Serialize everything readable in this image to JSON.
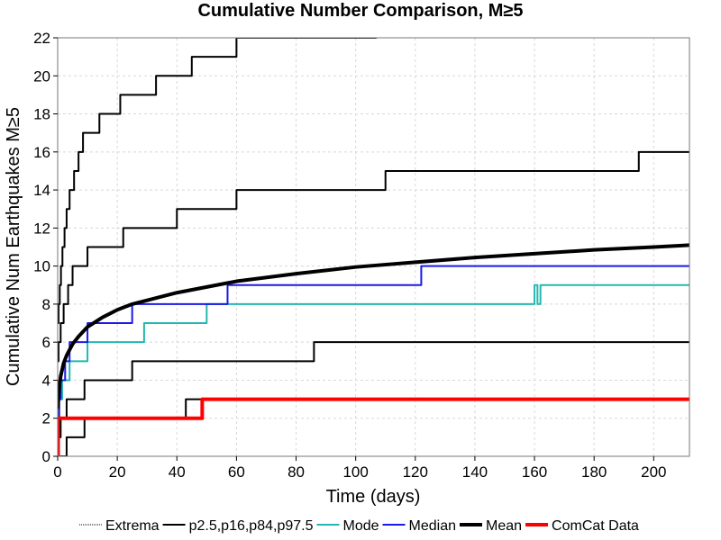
{
  "chart_data": {
    "type": "line",
    "title": "Cumulative Number Comparison, M≥5",
    "xlabel": "Time (days)",
    "ylabel": "Cumulative Num Earthquakes M≥5",
    "xlim": [
      0,
      212
    ],
    "ylim": [
      0,
      22
    ],
    "xticks": [
      0,
      20,
      40,
      60,
      80,
      100,
      120,
      140,
      160,
      180,
      200
    ],
    "yticks": [
      0,
      2,
      4,
      6,
      8,
      10,
      12,
      14,
      16,
      18,
      20,
      22
    ],
    "grid": true,
    "legend_position": "bottom",
    "legend": [
      {
        "label": "Extrema",
        "color": "#000000",
        "style": "dotted"
      },
      {
        "label": "p2.5,p16,p84,p97.5",
        "color": "#000000",
        "style": "solid"
      },
      {
        "label": "Mode",
        "color": "#22b8b0",
        "style": "solid"
      },
      {
        "label": "Median",
        "color": "#1a1ae6",
        "style": "solid"
      },
      {
        "label": "Mean",
        "color": "#000000",
        "style": "thick"
      },
      {
        "label": "ComCat Data",
        "color": "#ff0000",
        "style": "thick"
      }
    ],
    "series": [
      {
        "key": "p97.5",
        "color": "#000000",
        "width": 2,
        "x": [
          0,
          0.3,
          0.7,
          1.1,
          1.6,
          2.3,
          3,
          4,
          5.5,
          7,
          8.5,
          11,
          14,
          17,
          21,
          28,
          33,
          41,
          45,
          54,
          60,
          78,
          90,
          107
        ],
        "y": [
          7,
          8,
          9,
          10,
          11,
          12,
          13,
          14,
          15,
          16,
          17,
          17,
          18,
          18,
          19,
          19,
          20,
          20,
          21,
          21,
          22,
          22,
          22,
          22
        ]
      },
      {
        "key": "p84",
        "color": "#000000",
        "width": 2,
        "x": [
          0,
          0.3,
          1,
          2,
          3.5,
          5,
          7,
          10,
          15,
          22,
          25,
          40,
          45,
          60,
          70,
          82,
          110,
          118,
          125,
          160,
          195,
          200,
          212
        ],
        "y": [
          5,
          6,
          7,
          8,
          9,
          10,
          10,
          11,
          11,
          12,
          12,
          13,
          13,
          14,
          14,
          14,
          15,
          15,
          15,
          15,
          16,
          16,
          16
        ]
      },
      {
        "key": "p16",
        "color": "#000000",
        "width": 2,
        "x": [
          0,
          1,
          3,
          5,
          9,
          15,
          25,
          33,
          50,
          86,
          90,
          120,
          150,
          212
        ],
        "y": [
          1,
          2,
          3,
          3,
          4,
          4,
          5,
          5,
          5,
          6,
          6,
          6,
          6,
          6
        ]
      },
      {
        "key": "p2.5",
        "color": "#000000",
        "width": 2,
        "x": [
          0,
          1.5,
          3,
          6,
          9,
          20,
          43,
          48,
          60,
          100,
          150,
          212
        ],
        "y": [
          0,
          0,
          1,
          1,
          2,
          2,
          3,
          3,
          3,
          3,
          3,
          3
        ]
      },
      {
        "key": "Mode",
        "color": "#22b8b0",
        "width": 2,
        "x": [
          0,
          0.5,
          1.5,
          2.5,
          4,
          5,
          8,
          10,
          20,
          29,
          35,
          50,
          60,
          100,
          159,
          160,
          161,
          162,
          180,
          212
        ],
        "y": [
          2,
          3,
          4,
          4,
          5,
          5,
          5,
          6,
          6,
          7,
          7,
          8,
          8,
          8,
          8,
          9,
          8,
          9,
          9,
          9
        ]
      },
      {
        "key": "Median",
        "color": "#1a1ae6",
        "width": 2,
        "x": [
          0,
          0.5,
          1,
          2.5,
          4,
          6,
          10,
          15,
          25,
          30,
          45,
          57,
          80,
          100,
          122,
          150,
          180,
          212
        ],
        "y": [
          2,
          3,
          4,
          5,
          6,
          6,
          7,
          7,
          8,
          8,
          8,
          9,
          9,
          9,
          10,
          10,
          10,
          10
        ]
      },
      {
        "key": "Mean",
        "color": "#000000",
        "width": 4,
        "smooth": true,
        "x": [
          0,
          0.5,
          1,
          2,
          3,
          5,
          7,
          10,
          15,
          20,
          25,
          30,
          40,
          50,
          60,
          80,
          100,
          120,
          140,
          160,
          180,
          200,
          212
        ],
        "y": [
          2.5,
          3.6,
          4.2,
          4.9,
          5.3,
          5.9,
          6.3,
          6.8,
          7.3,
          7.7,
          8.0,
          8.2,
          8.6,
          8.9,
          9.2,
          9.6,
          9.95,
          10.2,
          10.45,
          10.65,
          10.85,
          11.0,
          11.1
        ]
      },
      {
        "key": "ComCat Data",
        "color": "#ff0000",
        "width": 4,
        "x": [
          0,
          0.15,
          48,
          48.5,
          100,
          150,
          212
        ],
        "y": [
          0,
          2,
          2,
          3,
          3,
          3,
          3
        ]
      }
    ]
  }
}
